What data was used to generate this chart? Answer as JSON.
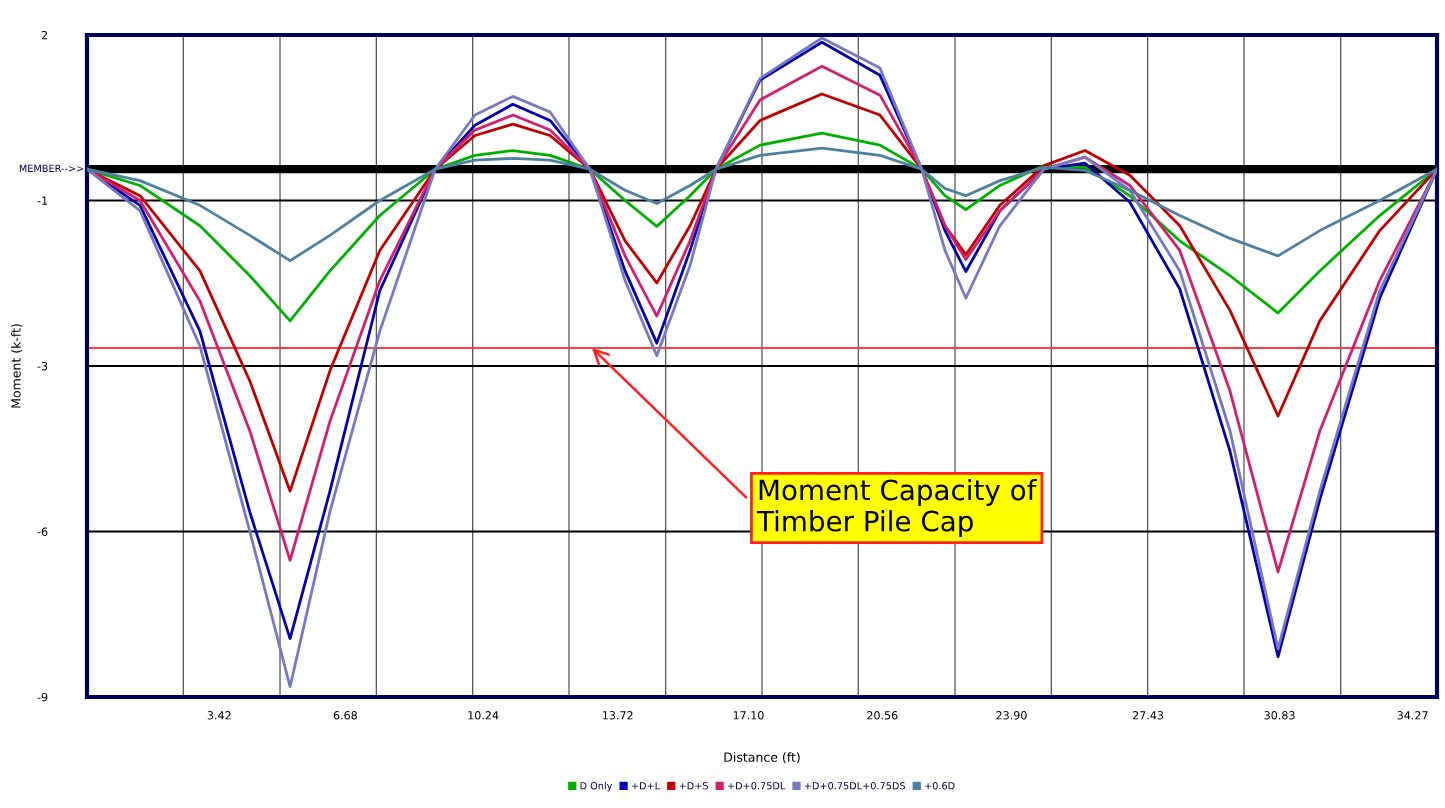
{
  "chart_data": {
    "type": "line",
    "xlabel": "Distance (ft)",
    "ylabel": "Moment (k-ft)",
    "x": [
      0,
      1.37,
      2.92,
      4.21,
      5.25,
      6.28,
      7.57,
      9.0,
      10.03,
      11.01,
      11.97,
      13.0,
      13.91,
      14.73,
      15.59,
      16.26,
      17.4,
      19.0,
      20.5,
      21.58,
      22.18,
      22.72,
      23.6,
      24.74,
      25.8,
      26.96,
      28.25,
      29.55,
      30.79,
      31.87,
      33.42,
      34.9
    ],
    "series": [
      {
        "name": "D Only",
        "color": "#00b000",
        "values": [
          -0.23,
          -0.5,
          -1.17,
          -2.0,
          -2.75,
          -1.92,
          -1.0,
          -0.23,
          0.0,
          0.08,
          0.0,
          -0.23,
          -0.75,
          -1.18,
          -0.67,
          -0.23,
          0.17,
          0.37,
          0.17,
          -0.23,
          -0.67,
          -0.9,
          -0.5,
          -0.17,
          -0.2,
          -0.67,
          -1.42,
          -2.0,
          -2.62,
          -1.92,
          -1.0,
          -0.23
        ]
      },
      {
        "name": "+D+L",
        "color": "#0000b0",
        "values": [
          -0.23,
          -0.83,
          -2.92,
          -5.93,
          -8.03,
          -5.58,
          -2.25,
          -0.23,
          0.5,
          0.85,
          0.58,
          -0.23,
          -1.92,
          -3.12,
          -1.58,
          -0.23,
          1.25,
          1.88,
          1.33,
          -0.23,
          -1.25,
          -1.93,
          -0.92,
          -0.23,
          -0.13,
          -0.78,
          -2.22,
          -4.92,
          -8.33,
          -5.72,
          -2.37,
          -0.23
        ]
      },
      {
        "name": "+D+S",
        "color": "#c00000",
        "values": [
          -0.23,
          -0.67,
          -1.92,
          -3.75,
          -5.58,
          -3.58,
          -1.58,
          -0.23,
          0.33,
          0.52,
          0.33,
          -0.23,
          -1.42,
          -2.12,
          -1.17,
          -0.23,
          0.58,
          1.02,
          0.67,
          -0.23,
          -1.17,
          -1.65,
          -0.83,
          -0.17,
          0.08,
          -0.33,
          -1.17,
          -2.58,
          -4.33,
          -2.75,
          -1.25,
          -0.23
        ]
      },
      {
        "name": "+D+0.75DL",
        "color": "#d0206e",
        "values": [
          -0.23,
          -0.75,
          -2.42,
          -4.58,
          -6.73,
          -4.42,
          -2.08,
          -0.23,
          0.42,
          0.67,
          0.42,
          -0.23,
          -1.67,
          -2.67,
          -1.42,
          -0.23,
          0.92,
          1.48,
          1.0,
          -0.23,
          -1.17,
          -1.73,
          -0.92,
          -0.23,
          -0.03,
          -0.5,
          -1.58,
          -3.92,
          -6.92,
          -4.58,
          -2.08,
          -0.23
        ]
      },
      {
        "name": "+D+0.75DL+0.75DS",
        "color": "#7878c0",
        "values": [
          -0.23,
          -0.92,
          -3.17,
          -6.25,
          -8.83,
          -5.92,
          -2.92,
          -0.23,
          0.67,
          0.98,
          0.72,
          -0.23,
          -2.08,
          -3.33,
          -1.83,
          -0.23,
          1.28,
          1.95,
          1.45,
          -0.23,
          -1.58,
          -2.37,
          -1.17,
          -0.23,
          -0.03,
          -0.58,
          -1.92,
          -4.58,
          -8.2,
          -5.58,
          -2.25,
          -0.23
        ]
      },
      {
        "name": "+0.6D",
        "color": "#5080a0",
        "values": [
          -0.23,
          -0.42,
          -0.83,
          -1.33,
          -1.75,
          -1.33,
          -0.75,
          -0.23,
          -0.08,
          -0.05,
          -0.08,
          -0.23,
          -0.58,
          -0.8,
          -0.5,
          -0.23,
          0.0,
          0.12,
          0.0,
          -0.23,
          -0.55,
          -0.67,
          -0.42,
          -0.2,
          -0.25,
          -0.58,
          -1.0,
          -1.38,
          -1.67,
          -1.25,
          -0.75,
          -0.23
        ]
      }
    ],
    "xlim": [
      0,
      34.9
    ],
    "xticks": [
      {
        "value": 2.49,
        "label": null
      },
      {
        "value": 3.42,
        "label": "3.42"
      },
      {
        "value": 4.99,
        "label": null
      },
      {
        "value": 6.68,
        "label": "6.68"
      },
      {
        "value": 7.48,
        "label": null
      },
      {
        "value": 9.97,
        "label": null
      },
      {
        "value": 10.24,
        "label": "10.24"
      },
      {
        "value": 12.46,
        "label": null
      },
      {
        "value": 13.72,
        "label": "13.72"
      },
      {
        "value": 14.96,
        "label": null
      },
      {
        "value": 17.1,
        "label": "17.10"
      },
      {
        "value": 17.45,
        "label": null
      },
      {
        "value": 19.94,
        "label": null
      },
      {
        "value": 20.56,
        "label": "20.56"
      },
      {
        "value": 22.44,
        "label": null
      },
      {
        "value": 23.9,
        "label": "23.90"
      },
      {
        "value": 24.93,
        "label": null
      },
      {
        "value": 27.42,
        "label": null
      },
      {
        "value": 27.43,
        "label": "27.43"
      },
      {
        "value": 29.91,
        "label": null
      },
      {
        "value": 30.83,
        "label": "30.83"
      },
      {
        "value": 32.41,
        "label": null
      },
      {
        "value": 34.27,
        "label": "34.27"
      }
    ],
    "ylim": [
      -9,
      2
    ],
    "yticks": [
      {
        "value": 2,
        "label": "2"
      },
      {
        "value": -0.75,
        "label": "-1"
      },
      {
        "value": -3.5,
        "label": "-3"
      },
      {
        "value": -6.25,
        "label": "-6"
      },
      {
        "value": -9,
        "label": "-9"
      }
    ],
    "grid": true,
    "legend": "bottom",
    "marker": "none",
    "line_style": "solid",
    "ref_lines": [
      {
        "axis": "y",
        "value": -0.23,
        "label": "MEMBER-->>",
        "color": "#000000"
      },
      {
        "axis": "y",
        "value": -3.2,
        "color": "#ff4040",
        "label": "Moment Capacity of\nTimber Pile Cap"
      }
    ]
  }
}
